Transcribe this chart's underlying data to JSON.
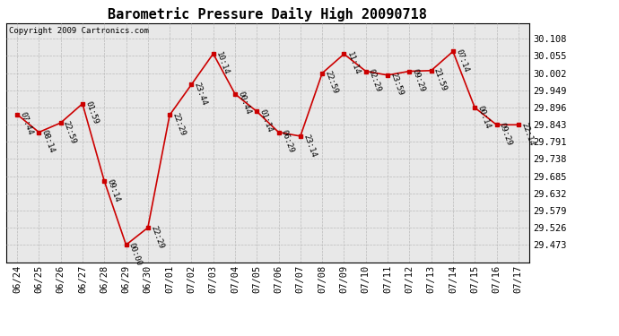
{
  "title": "Barometric Pressure Daily High 20090718",
  "copyright": "Copyright 2009 Cartronics.com",
  "x_labels": [
    "06/24",
    "06/25",
    "06/26",
    "06/27",
    "06/28",
    "06/29",
    "06/30",
    "07/01",
    "07/02",
    "07/03",
    "07/04",
    "07/05",
    "07/06",
    "07/07",
    "07/08",
    "07/09",
    "07/10",
    "07/11",
    "07/12",
    "07/13",
    "07/14",
    "07/15",
    "07/16",
    "07/17"
  ],
  "x_values": [
    0,
    1,
    2,
    3,
    4,
    5,
    6,
    7,
    8,
    9,
    10,
    11,
    12,
    13,
    14,
    15,
    16,
    17,
    18,
    19,
    20,
    21,
    22,
    23
  ],
  "y_values": [
    29.875,
    29.82,
    29.849,
    29.908,
    29.67,
    29.473,
    29.526,
    29.873,
    29.967,
    30.062,
    29.938,
    29.884,
    29.82,
    29.808,
    30.002,
    30.061,
    30.008,
    29.996,
    30.008,
    30.01,
    30.069,
    29.896,
    29.843,
    29.843
  ],
  "point_labels": [
    "07:44",
    "08:14",
    "22:59",
    "01:59",
    "09:14",
    "00:00",
    "22:29",
    "22:29",
    "23:44",
    "10:14",
    "00:44",
    "01:14",
    "06:29",
    "23:14",
    "22:59",
    "11:14",
    "02:29",
    "23:59",
    "09:29",
    "21:59",
    "07:14",
    "00:14",
    "09:29",
    "22:14"
  ],
  "line_color": "#cc0000",
  "marker_color": "#cc0000",
  "bg_color": "#ffffff",
  "plot_bg_color": "#e8e8e8",
  "grid_color": "#bbbbbb",
  "title_fontsize": 11,
  "label_fontsize": 6.5,
  "tick_fontsize": 7.5,
  "copyright_fontsize": 6.5,
  "ylim_min": 29.42,
  "ylim_max": 30.155,
  "yticks": [
    29.473,
    29.526,
    29.579,
    29.632,
    29.685,
    29.738,
    29.791,
    29.843,
    29.896,
    29.949,
    30.002,
    30.055,
    30.108
  ]
}
